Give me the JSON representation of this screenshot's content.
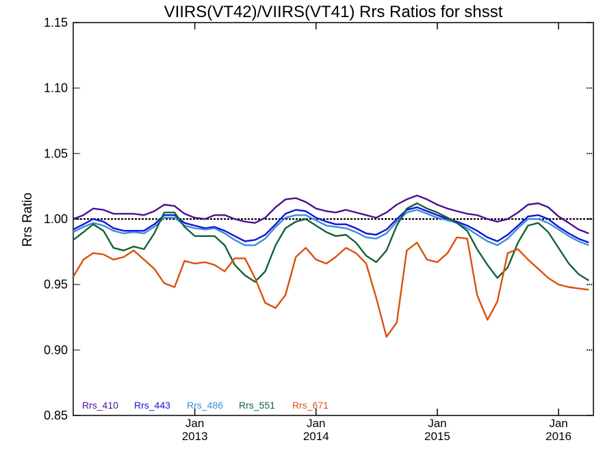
{
  "chart_data": {
    "type": "line",
    "title": "VIIRS(VT42)/VIIRS(VT41)  Rrs Ratios for shsst",
    "xlabel": "",
    "ylabel": "Rrs Ratio",
    "xlim": [
      "2012-01-01",
      "2016-04-15"
    ],
    "ylim": [
      0.85,
      1.15
    ],
    "yticks": [
      0.85,
      0.9,
      0.95,
      1.0,
      1.05,
      1.1,
      1.15
    ],
    "ytick_labels": [
      "0.85",
      "0.90",
      "0.95",
      "1.00",
      "1.05",
      "1.10",
      "1.15"
    ],
    "xticks": [
      {
        "date": "2013-01-01",
        "month": "Jan",
        "year": "2013"
      },
      {
        "date": "2014-01-01",
        "month": "Jan",
        "year": "2014"
      },
      {
        "date": "2015-01-01",
        "month": "Jan",
        "year": "2015"
      },
      {
        "date": "2016-01-01",
        "month": "Jan",
        "year": "2016"
      }
    ],
    "reference_line": 1.0,
    "x": [
      "2012-01-01",
      "2012-02-01",
      "2012-03-01",
      "2012-04-01",
      "2012-05-01",
      "2012-06-01",
      "2012-07-01",
      "2012-08-01",
      "2012-09-01",
      "2012-10-01",
      "2012-11-01",
      "2012-12-01",
      "2013-01-01",
      "2013-02-01",
      "2013-03-01",
      "2013-04-01",
      "2013-05-01",
      "2013-06-01",
      "2013-07-01",
      "2013-08-01",
      "2013-09-01",
      "2013-10-01",
      "2013-11-01",
      "2013-12-01",
      "2014-01-01",
      "2014-02-01",
      "2014-03-01",
      "2014-04-01",
      "2014-05-01",
      "2014-06-01",
      "2014-07-01",
      "2014-08-01",
      "2014-09-01",
      "2014-10-01",
      "2014-11-01",
      "2014-12-01",
      "2015-01-01",
      "2015-02-01",
      "2015-03-01",
      "2015-04-01",
      "2015-05-01",
      "2015-06-01",
      "2015-07-01",
      "2015-08-01",
      "2015-09-01",
      "2015-10-01",
      "2015-11-01",
      "2015-12-01",
      "2016-01-01",
      "2016-02-01",
      "2016-03-01",
      "2016-04-01"
    ],
    "series": [
      {
        "name": "Rrs_410",
        "color": "#4b0f91",
        "values": [
          1.0,
          1.003,
          1.008,
          1.007,
          1.004,
          1.004,
          1.004,
          1.003,
          1.006,
          1.011,
          1.01,
          1.004,
          1.001,
          1.0,
          1.003,
          1.003,
          1.0,
          0.998,
          0.997,
          1.001,
          1.009,
          1.015,
          1.016,
          1.013,
          1.008,
          1.006,
          1.005,
          1.007,
          1.005,
          1.003,
          1.001,
          1.005,
          1.011,
          1.015,
          1.018,
          1.015,
          1.011,
          1.008,
          1.006,
          1.004,
          1.003,
          1.0,
          0.998,
          1.0,
          1.005,
          1.011,
          1.012,
          1.009,
          1.002,
          0.997,
          0.992,
          0.989
        ]
      },
      {
        "name": "Rrs_443",
        "color": "#1212e0",
        "values": [
          0.992,
          0.996,
          1.0,
          0.998,
          0.993,
          0.991,
          0.991,
          0.991,
          0.996,
          1.003,
          1.003,
          0.997,
          0.995,
          0.993,
          0.994,
          0.991,
          0.987,
          0.983,
          0.984,
          0.988,
          0.996,
          1.004,
          1.007,
          1.006,
          1.001,
          0.998,
          0.996,
          0.996,
          0.993,
          0.989,
          0.988,
          0.992,
          1.0,
          1.007,
          1.009,
          1.006,
          1.003,
          1.0,
          0.998,
          0.995,
          0.991,
          0.986,
          0.983,
          0.988,
          0.995,
          1.002,
          1.003,
          1.0,
          0.994,
          0.989,
          0.985,
          0.982
        ]
      },
      {
        "name": "Rrs_486",
        "color": "#3a8fd1",
        "values": [
          0.99,
          0.994,
          0.997,
          0.995,
          0.991,
          0.989,
          0.99,
          0.989,
          0.994,
          1.001,
          1.001,
          0.995,
          0.993,
          0.992,
          0.993,
          0.989,
          0.984,
          0.98,
          0.98,
          0.985,
          0.994,
          1.001,
          1.003,
          1.003,
          0.999,
          0.995,
          0.994,
          0.993,
          0.99,
          0.986,
          0.985,
          0.989,
          0.998,
          1.005,
          1.007,
          1.004,
          1.001,
          0.999,
          0.997,
          0.993,
          0.988,
          0.983,
          0.98,
          0.985,
          0.993,
          1.0,
          1.0,
          0.997,
          0.992,
          0.987,
          0.983,
          0.98
        ]
      },
      {
        "name": "Rrs_551",
        "color": "#10603a",
        "values": [
          0.984,
          0.99,
          0.996,
          0.991,
          0.978,
          0.976,
          0.979,
          0.977,
          0.989,
          1.005,
          1.005,
          0.994,
          0.987,
          0.987,
          0.987,
          0.98,
          0.965,
          0.957,
          0.952,
          0.96,
          0.98,
          0.993,
          0.998,
          1.0,
          0.995,
          0.99,
          0.987,
          0.988,
          0.982,
          0.972,
          0.967,
          0.976,
          0.995,
          1.008,
          1.012,
          1.008,
          1.005,
          1.001,
          0.997,
          0.991,
          0.977,
          0.965,
          0.955,
          0.963,
          0.982,
          0.995,
          0.997,
          0.99,
          0.978,
          0.966,
          0.958,
          0.953
        ]
      },
      {
        "name": "Rrs_671",
        "color": "#d9500c",
        "values": [
          0.956,
          0.969,
          0.974,
          0.973,
          0.969,
          0.971,
          0.976,
          0.969,
          0.962,
          0.951,
          0.948,
          0.968,
          0.966,
          0.967,
          0.965,
          0.96,
          0.97,
          0.97,
          0.955,
          0.936,
          0.932,
          0.942,
          0.971,
          0.978,
          0.969,
          0.966,
          0.971,
          0.978,
          0.974,
          0.966,
          0.94,
          0.91,
          0.921,
          0.976,
          0.982,
          0.969,
          0.967,
          0.974,
          0.986,
          0.985,
          0.942,
          0.923,
          0.937,
          0.974,
          0.977,
          0.969,
          0.962,
          0.955,
          0.95,
          0.948,
          0.947,
          0.946
        ]
      }
    ],
    "legend": [
      "Rrs_410",
      "Rrs_443",
      "Rrs_486",
      "Rrs_551",
      "Rrs_671"
    ],
    "legend_position": "bottom-left",
    "grid": false
  }
}
